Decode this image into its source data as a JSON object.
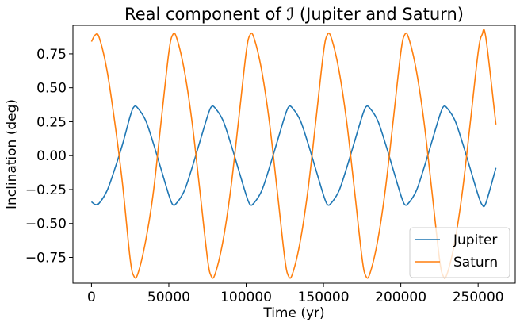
{
  "chart_data": {
    "type": "line",
    "title": "Real component of ℐ (Jupiter and Saturn)",
    "xlabel": "Time (yr)",
    "ylabel": "Inclination (deg)",
    "xlim": [
      -12000,
      274000
    ],
    "ylim": [
      -0.94,
      0.96
    ],
    "x_ticks": [
      0,
      50000,
      100000,
      150000,
      200000,
      250000
    ],
    "x_tick_labels": [
      "0",
      "50000",
      "100000",
      "150000",
      "200000",
      "250000"
    ],
    "y_ticks": [
      -0.75,
      -0.5,
      -0.25,
      0.0,
      0.25,
      0.5,
      0.75
    ],
    "y_tick_labels": [
      "−0.75",
      "−0.50",
      "−0.25",
      "0.00",
      "0.25",
      "0.50",
      "0.75"
    ],
    "grid": false,
    "legend_position": "lower-right",
    "series": [
      {
        "name": "Jupiter",
        "color": "#1f77b4",
        "x": [
          0,
          2500,
          5000,
          10000,
          15000,
          20000,
          25000,
          27500,
          30000,
          35000,
          40000,
          45000,
          50000,
          52500,
          55000,
          60000,
          65000,
          70000,
          75000,
          77500,
          80000,
          85000,
          90000,
          95000,
          100000,
          102500,
          105000,
          110000,
          115000,
          120000,
          125000,
          127500,
          130000,
          135000,
          140000,
          145000,
          150000,
          152500,
          155000,
          160000,
          165000,
          170000,
          175000,
          177500,
          180000,
          185000,
          190000,
          195000,
          200000,
          202500,
          205000,
          210000,
          215000,
          220000,
          225000,
          227500,
          230000,
          235000,
          240000,
          245000,
          250000,
          252500,
          255000,
          261500
        ],
        "values": [
          -0.34,
          -0.36,
          -0.35,
          -0.26,
          -0.1,
          0.08,
          0.29,
          0.36,
          0.35,
          0.26,
          0.09,
          -0.1,
          -0.29,
          -0.36,
          -0.35,
          -0.26,
          -0.09,
          0.1,
          0.29,
          0.36,
          0.35,
          0.26,
          0.09,
          -0.1,
          -0.29,
          -0.36,
          -0.35,
          -0.26,
          -0.09,
          0.1,
          0.29,
          0.36,
          0.35,
          0.26,
          0.09,
          -0.1,
          -0.29,
          -0.36,
          -0.35,
          -0.26,
          -0.09,
          0.1,
          0.29,
          0.36,
          0.35,
          0.26,
          0.09,
          -0.1,
          -0.29,
          -0.36,
          -0.35,
          -0.26,
          -0.09,
          0.1,
          0.29,
          0.36,
          0.35,
          0.26,
          0.09,
          -0.1,
          -0.29,
          -0.36,
          -0.35,
          -0.09
        ]
      },
      {
        "name": "Saturn",
        "color": "#ff7f0e",
        "x": [
          0,
          2500,
          5000,
          10000,
          15000,
          20000,
          25000,
          27500,
          30000,
          35000,
          40000,
          45000,
          50000,
          52500,
          55000,
          60000,
          65000,
          70000,
          75000,
          77500,
          80000,
          85000,
          90000,
          95000,
          100000,
          102500,
          105000,
          110000,
          115000,
          120000,
          125000,
          127500,
          130000,
          135000,
          140000,
          145000,
          150000,
          152500,
          155000,
          160000,
          165000,
          170000,
          175000,
          177500,
          180000,
          185000,
          190000,
          195000,
          200000,
          202500,
          205000,
          210000,
          215000,
          220000,
          225000,
          227500,
          230000,
          235000,
          240000,
          245000,
          250000,
          252500,
          255000,
          261500
        ],
        "values": [
          0.84,
          0.89,
          0.87,
          0.63,
          0.25,
          -0.2,
          -0.76,
          -0.89,
          -0.87,
          -0.63,
          -0.27,
          0.25,
          0.76,
          0.89,
          0.87,
          0.63,
          0.25,
          -0.25,
          -0.76,
          -0.89,
          -0.87,
          -0.63,
          -0.25,
          0.25,
          0.76,
          0.89,
          0.87,
          0.63,
          0.25,
          -0.25,
          -0.76,
          -0.89,
          -0.87,
          -0.63,
          -0.25,
          0.25,
          0.76,
          0.89,
          0.87,
          0.63,
          0.25,
          -0.25,
          -0.76,
          -0.89,
          -0.87,
          -0.63,
          -0.25,
          0.25,
          0.76,
          0.89,
          0.87,
          0.63,
          0.25,
          -0.25,
          -0.76,
          -0.89,
          -0.87,
          -0.63,
          -0.25,
          0.25,
          0.76,
          0.89,
          0.87,
          0.23
        ]
      }
    ]
  }
}
